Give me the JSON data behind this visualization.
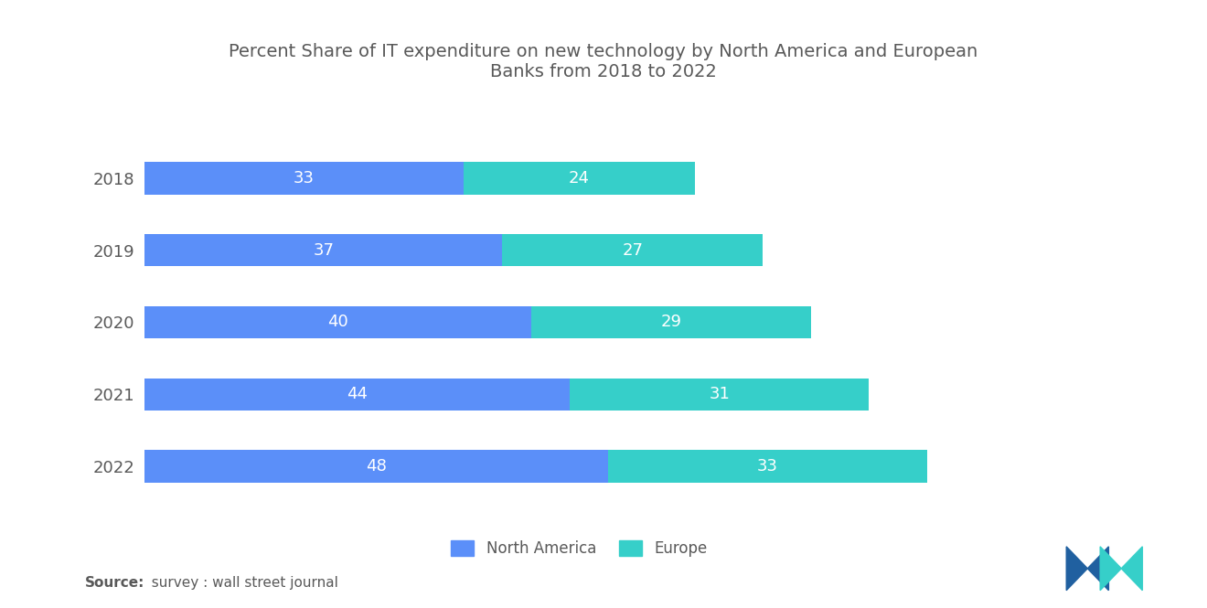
{
  "title": "Percent Share of IT expenditure on new technology by North America and European\nBanks from 2018 to 2022",
  "years": [
    "2018",
    "2019",
    "2020",
    "2021",
    "2022"
  ],
  "north_america": [
    33,
    37,
    40,
    44,
    48
  ],
  "europe": [
    24,
    27,
    29,
    31,
    33
  ],
  "na_color": "#5B8FF9",
  "eu_color": "#36CFC9",
  "na_label": "North America",
  "eu_label": "Europe",
  "source_bold": "Source:",
  "source_rest": "  survey : wall street journal",
  "bg_color": "#ffffff",
  "title_color": "#595959",
  "label_color": "#ffffff",
  "year_label_color": "#595959",
  "bar_height": 0.45,
  "xlim": [
    0,
    90
  ],
  "title_fontsize": 14,
  "label_fontsize": 13,
  "year_fontsize": 13,
  "legend_fontsize": 12,
  "source_fontsize": 11,
  "logo_blue": "#2060A0",
  "logo_teal": "#36CFC9"
}
